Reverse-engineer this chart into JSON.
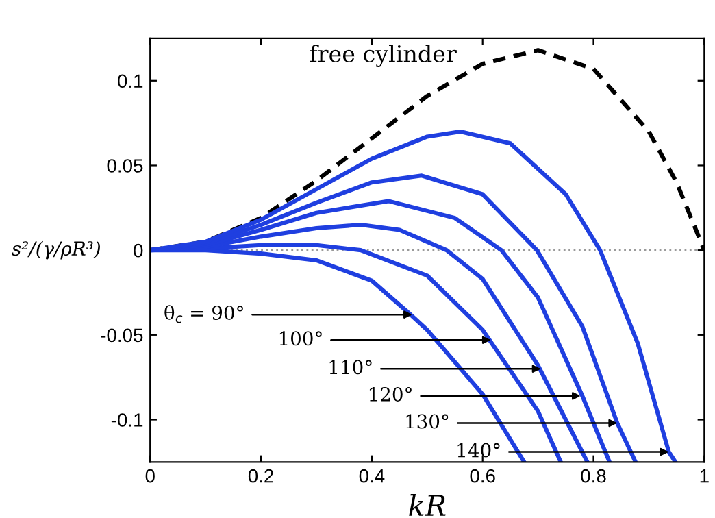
{
  "chart_data": {
    "type": "line",
    "xlabel": "kR",
    "ylabel": "s²/(γ/ρR³)",
    "xlim": [
      0,
      1
    ],
    "ylim": [
      -0.125,
      0.125
    ],
    "xticks": [
      0,
      0.2,
      0.4,
      0.6,
      0.8,
      1
    ],
    "yticks": [
      -0.1,
      -0.05,
      0,
      0.05,
      0.1
    ],
    "grid": false,
    "legend": "top",
    "marker": "none",
    "series": [
      {
        "name": "free cylinder",
        "color": "#000000",
        "line_style": "dashed",
        "x": [
          0,
          0.1,
          0.2,
          0.3,
          0.4,
          0.5,
          0.6,
          0.7,
          0.8,
          0.9,
          0.95,
          1
        ],
        "values": [
          0,
          0.005,
          0.019,
          0.041,
          0.066,
          0.091,
          0.11,
          0.118,
          0.107,
          0.07,
          0.04,
          0
        ]
      },
      {
        "color": "#1f3fe0",
        "line_style": "solid",
        "x": [
          0,
          0.1,
          0.2,
          0.3,
          0.4,
          0.47,
          0.5,
          0.6,
          0.675
        ],
        "values": [
          0,
          0,
          -0.002,
          -0.006,
          -0.018,
          -0.038,
          -0.047,
          -0.085,
          -0.125
        ]
      },
      {
        "color": "#1f3fe0",
        "line_style": "solid",
        "x": [
          0,
          0.1,
          0.2,
          0.3,
          0.38,
          0.5,
          0.6,
          0.7,
          0.741
        ],
        "values": [
          0,
          0.001,
          0.003,
          0.003,
          0,
          -0.015,
          -0.047,
          -0.095,
          -0.125
        ]
      },
      {
        "color": "#1f3fe0",
        "line_style": "solid",
        "x": [
          0,
          0.1,
          0.2,
          0.3,
          0.38,
          0.45,
          0.535,
          0.6,
          0.7,
          0.75,
          0.789
        ],
        "values": [
          0,
          0.002,
          0.008,
          0.013,
          0.015,
          0.012,
          0,
          -0.017,
          -0.068,
          -0.1,
          -0.125
        ]
      },
      {
        "color": "#1f3fe0",
        "line_style": "solid",
        "x": [
          0,
          0.1,
          0.2,
          0.3,
          0.43,
          0.55,
          0.634,
          0.7,
          0.78,
          0.829
        ],
        "values": [
          0,
          0.003,
          0.012,
          0.022,
          0.029,
          0.019,
          0,
          -0.028,
          -0.086,
          -0.125
        ]
      },
      {
        "color": "#1f3fe0",
        "line_style": "solid",
        "x": [
          0,
          0.1,
          0.2,
          0.3,
          0.4,
          0.49,
          0.6,
          0.698,
          0.78,
          0.843,
          0.876
        ],
        "values": [
          0,
          0.004,
          0.015,
          0.028,
          0.04,
          0.044,
          0.033,
          0,
          -0.045,
          -0.102,
          -0.125
        ]
      },
      {
        "color": "#1f3fe0",
        "line_style": "solid",
        "x": [
          0,
          0.1,
          0.2,
          0.3,
          0.4,
          0.5,
          0.56,
          0.65,
          0.75,
          0.812,
          0.88,
          0.936,
          0.948
        ],
        "values": [
          0,
          0.005,
          0.018,
          0.036,
          0.054,
          0.067,
          0.07,
          0.063,
          0.033,
          0,
          -0.055,
          -0.119,
          -0.125
        ]
      }
    ],
    "ref_lines": [
      {
        "axis": "y",
        "value": 0,
        "color": "#999999",
        "line_style": "dotted"
      }
    ],
    "annotations": [
      {
        "text": "θ$_{c}$ = 90°",
        "x": 0.473,
        "y": -0.038
      },
      {
        "text": "100°",
        "x": 0.615,
        "y": -0.053
      },
      {
        "text": "110°",
        "x": 0.705,
        "y": -0.07
      },
      {
        "text": "120°",
        "x": 0.777,
        "y": -0.086
      },
      {
        "text": "130°",
        "x": 0.843,
        "y": -0.102
      },
      {
        "text": "140°",
        "x": 0.936,
        "y": -0.119
      }
    ]
  }
}
